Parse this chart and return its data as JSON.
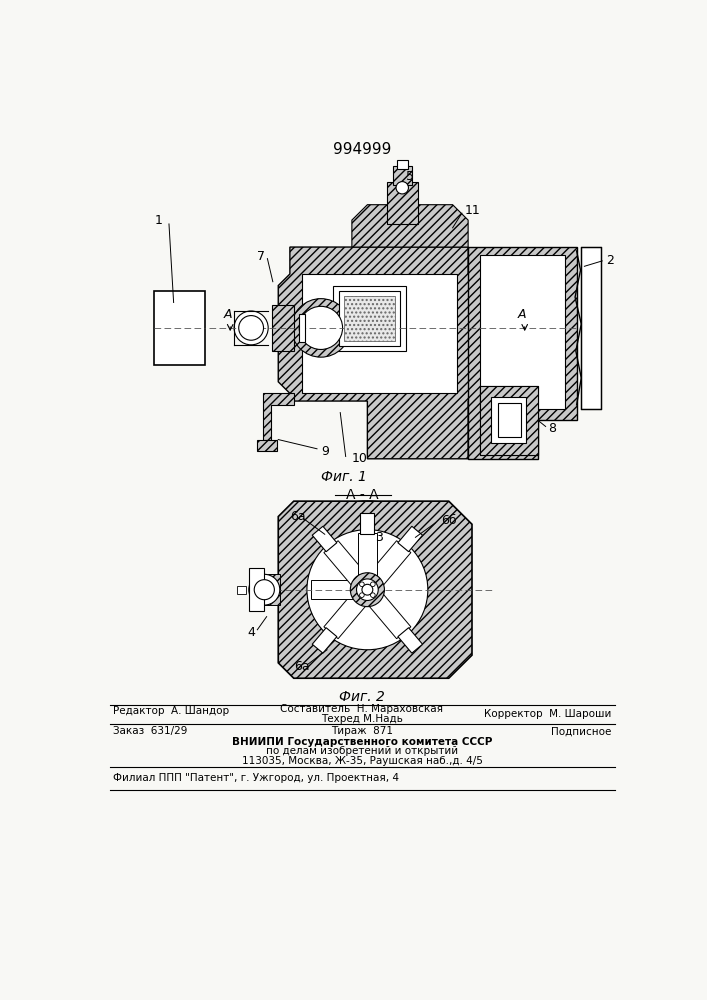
{
  "patent_number": "994999",
  "bg_color": "#f8f8f5",
  "fig1_caption": "Фиг. 1",
  "fig2_caption": "Фиг. 2",
  "section_label": "А - А",
  "footer": {
    "editor": "Редактор  А. Шандор",
    "composer": "Составитель  Н. Мараховская",
    "techred": "Техред М.Надь",
    "corrector": "Корректор  М. Шароши",
    "order": "Заказ  631/29",
    "tirazh": "Тираж  871",
    "podpisnoe": "Подписное",
    "org_line1": "ВНИИПИ Государственного комитета СССР",
    "org_line2": "по делам изобретений и открытий",
    "org_line3": "113035, Москва, Ж-35, Раушская наб.,д. 4/5",
    "filial": "Филиал ППП \"Патент\", г. Ужгород, ул. Проектная, 4"
  }
}
